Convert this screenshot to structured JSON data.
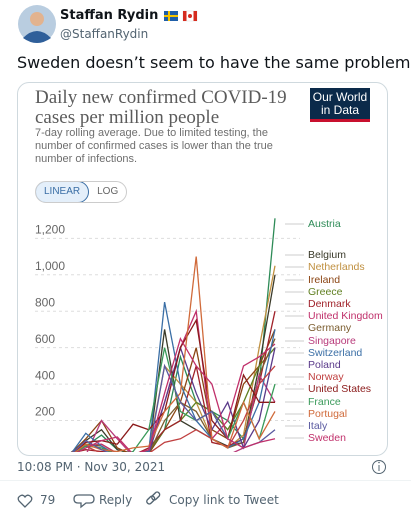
{
  "tweet": {
    "author": {
      "name": "Staffan Rydin",
      "handle": "@StaffanRydin"
    },
    "text": "Sweden doesn’t seem to have the same problems.",
    "timestamp": "10:08 PM · Nov 30, 2021",
    "likes": 79,
    "actions": [
      "Reply",
      "Copy link to Tweet"
    ]
  },
  "chart_data": {
    "type": "line",
    "title": "Daily new confirmed COVID-19 cases per million people",
    "subtitle": "7-day rolling average. Due to limited testing, the number of confirmed cases is lower than the true number of infections.",
    "logo": "Our World in Data",
    "scale_buttons": [
      "LINEAR",
      "LOG"
    ],
    "log_scale": false,
    "grid": true,
    "categories": [
      null,
      null,
      null,
      null,
      null,
      null,
      null,
      null,
      null,
      null,
      null,
      null,
      null,
      null
    ],
    "ylim": [
      0,
      1350
    ],
    "yticks": [
      {
        "value": 1200,
        "label": "1,200"
      },
      {
        "value": 1000,
        "label": "1,000"
      },
      800,
      600,
      400,
      200
    ],
    "series": [
      {
        "name": "Austria",
        "color": "#2e8b57",
        "values": [
          10,
          60,
          120,
          40,
          15,
          20,
          150,
          550,
          300,
          250,
          200,
          100,
          400,
          1310
        ]
      },
      {
        "name": "Belgium",
        "color": "#3a3a2a",
        "values": [
          20,
          90,
          150,
          40,
          20,
          30,
          700,
          200,
          150,
          100,
          60,
          80,
          500,
          1000
        ]
      },
      {
        "name": "Netherlands",
        "color": "#c09040",
        "values": [
          10,
          60,
          70,
          20,
          10,
          40,
          500,
          400,
          300,
          100,
          50,
          120,
          600,
          1050
        ]
      },
      {
        "name": "Ireland",
        "color": "#8b4513",
        "values": [
          15,
          100,
          200,
          50,
          10,
          20,
          150,
          300,
          600,
          150,
          100,
          400,
          500,
          700
        ]
      },
      {
        "name": "Greece",
        "color": "#5f7f20",
        "values": [
          5,
          10,
          5,
          5,
          10,
          30,
          150,
          200,
          300,
          250,
          150,
          300,
          500,
          600
        ]
      },
      {
        "name": "Denmark",
        "color": "#a0222a",
        "values": [
          20,
          40,
          30,
          20,
          10,
          50,
          150,
          200,
          500,
          80,
          60,
          100,
          400,
          800
        ]
      },
      {
        "name": "United Kingdom",
        "color": "#c0306b",
        "values": [
          10,
          60,
          70,
          20,
          10,
          40,
          300,
          600,
          800,
          100,
          200,
          500,
          550,
          620
        ]
      },
      {
        "name": "Germany",
        "color": "#7a5c2e",
        "values": [
          10,
          70,
          60,
          10,
          5,
          20,
          200,
          300,
          250,
          100,
          50,
          80,
          450,
          650
        ]
      },
      {
        "name": "Singapore",
        "color": "#b83a7a",
        "values": [
          1,
          10,
          200,
          100,
          5,
          1,
          1,
          1,
          1,
          5,
          10,
          50,
          450,
          300
        ]
      },
      {
        "name": "Switzerland",
        "color": "#3a6ea5",
        "values": [
          10,
          130,
          60,
          5,
          10,
          30,
          850,
          400,
          200,
          100,
          50,
          100,
          300,
          700
        ]
      },
      {
        "name": "Poland",
        "color": "#5a3a8a",
        "values": [
          2,
          10,
          10,
          10,
          15,
          20,
          300,
          600,
          350,
          150,
          300,
          50,
          200,
          600
        ]
      },
      {
        "name": "Norway",
        "color": "#c04040",
        "values": [
          20,
          60,
          20,
          5,
          5,
          20,
          80,
          100,
          150,
          100,
          50,
          200,
          400,
          500
        ]
      },
      {
        "name": "United States",
        "color": "#8b1a1a",
        "values": [
          2,
          80,
          90,
          70,
          180,
          150,
          250,
          600,
          750,
          200,
          100,
          450,
          300,
          300
        ]
      },
      {
        "name": "France",
        "color": "#3a9a5a",
        "values": [
          5,
          60,
          50,
          10,
          30,
          150,
          600,
          250,
          200,
          250,
          100,
          300,
          100,
          400
        ]
      },
      {
        "name": "Portugal",
        "color": "#d06a3a",
        "values": [
          5,
          70,
          40,
          30,
          50,
          60,
          250,
          350,
          1100,
          100,
          50,
          300,
          100,
          250
        ]
      },
      {
        "name": "Italy",
        "color": "#5a5aa0",
        "values": [
          10,
          90,
          40,
          5,
          5,
          20,
          500,
          300,
          200,
          250,
          100,
          50,
          80,
          150
        ]
      },
      {
        "name": "Sweden",
        "color": "#c0306b",
        "values": [
          5,
          50,
          90,
          110,
          15,
          40,
          350,
          650,
          500,
          400,
          100,
          50,
          80,
          100
        ]
      }
    ]
  }
}
